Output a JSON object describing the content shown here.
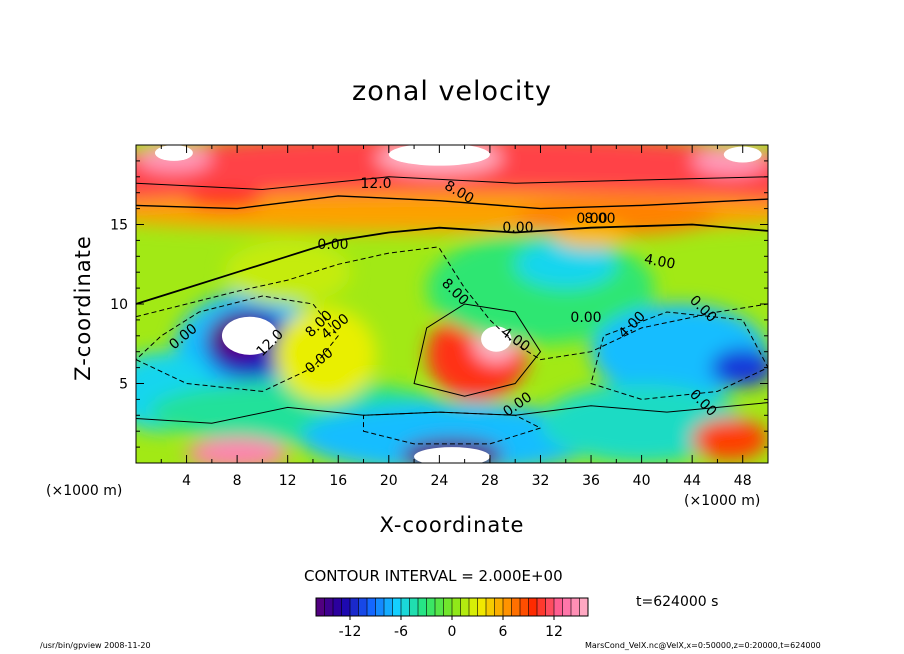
{
  "chart_data": {
    "type": "heatmap",
    "title": "zonal velocity",
    "xlabel": "X-coordinate",
    "ylabel": "Z-coordinate",
    "x_unit_left": "(×1000 m)",
    "x_unit_right": "(×1000 m)",
    "xlim": [
      0,
      50
    ],
    "ylim": [
      0,
      20
    ],
    "xticks": [
      4,
      8,
      12,
      16,
      20,
      24,
      28,
      32,
      36,
      40,
      44,
      48
    ],
    "yticks": [
      5,
      10,
      15
    ],
    "contour_interval": "CONTOUR INTERVAL = 2.000E+00",
    "time": "t=624000 s",
    "colorbar": {
      "range": [
        -16,
        16
      ],
      "ticks": [
        -12,
        -6,
        0,
        6,
        12
      ],
      "colormap": [
        "#5a0078",
        "#1e00a8",
        "#1464ff",
        "#14d2ff",
        "#28e678",
        "#7ee61e",
        "#f0f000",
        "#ff9600",
        "#ff2800",
        "#ff64a0",
        "#ffb4c8"
      ]
    },
    "contour_labels": [
      "12.0",
      "8.00",
      "0.00",
      "8.00",
      "0.00",
      "4.00",
      "8.00",
      "4.00",
      "0.00",
      "12.0",
      "8.00",
      "4.00",
      "0.00",
      "4.00",
      "0.00",
      "0.00",
      "0.00",
      "0.00",
      "0.00"
    ]
  },
  "footer": {
    "left": "/usr/bin/gpview  2008-11-20",
    "right": "MarsCond_VelX.nc@VelX,x=0:50000,z=0:20000,t=624000"
  }
}
